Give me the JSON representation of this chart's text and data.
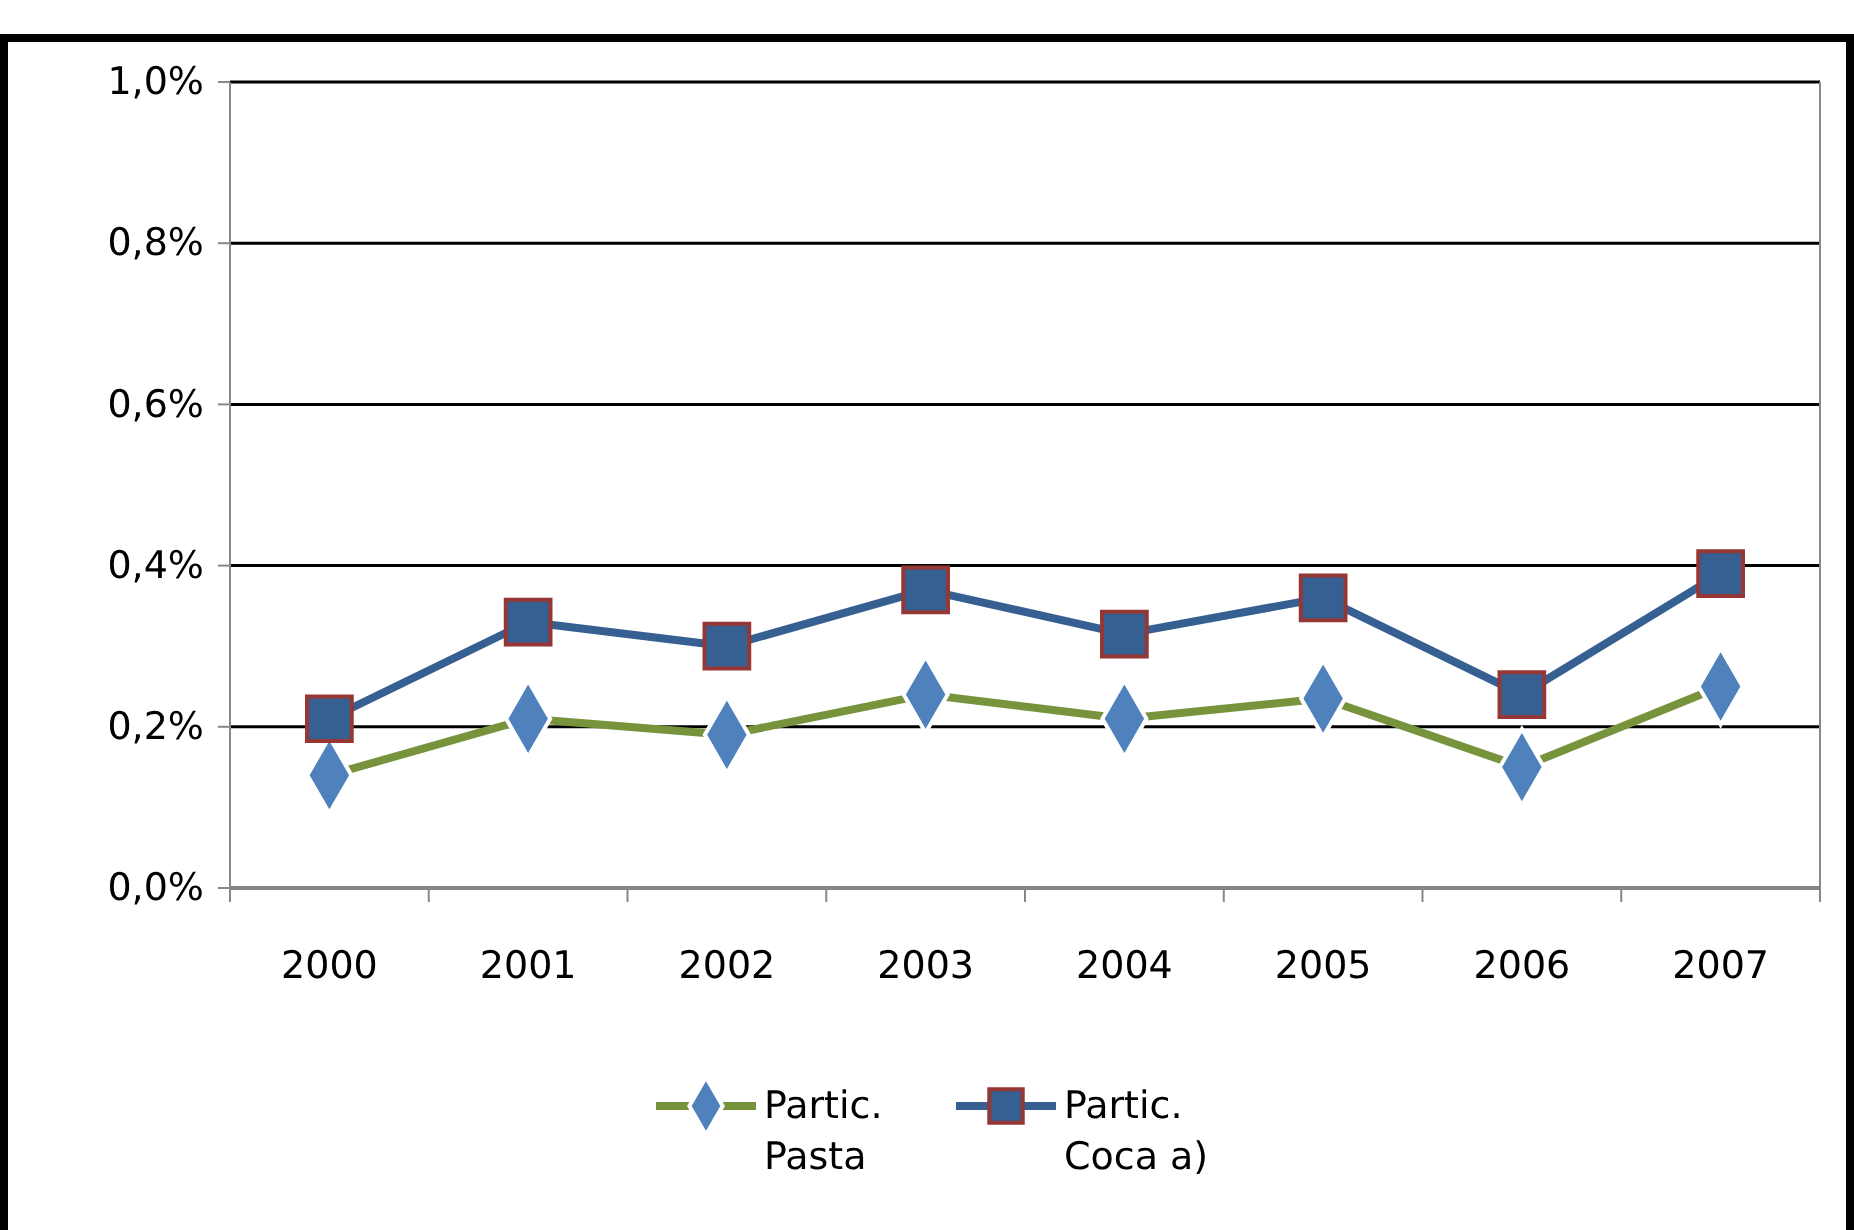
{
  "chart_data": {
    "type": "line",
    "categories": [
      "2000",
      "2001",
      "2002",
      "2003",
      "2004",
      "2005",
      "2006",
      "2007"
    ],
    "series": [
      {
        "name": "Partic. Pasta",
        "color": "#77933c",
        "marker": "diamond",
        "values": [
          0.14,
          0.21,
          0.19,
          0.24,
          0.21,
          0.235,
          0.15,
          0.25
        ]
      },
      {
        "name": "Partic. Coca a)",
        "color": "#376092",
        "marker": "square",
        "values": [
          0.21,
          0.33,
          0.3,
          0.37,
          0.315,
          0.36,
          0.24,
          0.39
        ]
      }
    ],
    "ylim": [
      0,
      1
    ],
    "yticks": [
      {
        "value": 0,
        "label": "0,0%"
      },
      {
        "value": 0.2,
        "label": "0,2%"
      },
      {
        "value": 0.4,
        "label": "0,4%"
      },
      {
        "value": 0.6,
        "label": "0,6%"
      },
      {
        "value": 0.8,
        "label": "0,8%"
      },
      {
        "value": 1,
        "label": "1,0%"
      }
    ],
    "grid": "y",
    "legend": "bottom"
  }
}
